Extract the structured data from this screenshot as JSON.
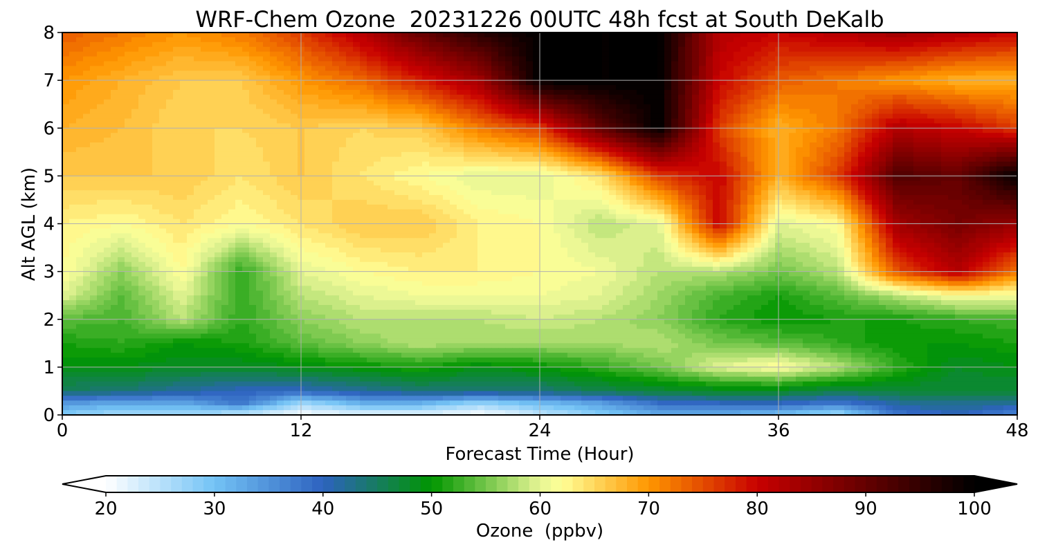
{
  "chart_data": {
    "type": "heatmap",
    "subtype": "filled-contour time-height cross section",
    "title": "WRF-Chem Ozone  20231226 00UTC 48h fcst at South DeKalb",
    "xlabel": "Forecast Time (Hour)",
    "ylabel": "Alt AGL (km)",
    "xlim": [
      0,
      48
    ],
    "ylim": [
      0,
      8
    ],
    "x_ticks": [
      "0",
      "12",
      "24",
      "36",
      "48"
    ],
    "y_ticks": [
      "0",
      "1",
      "2",
      "3",
      "4",
      "5",
      "6",
      "7",
      "8"
    ],
    "grid": true,
    "x": [
      0,
      3,
      6,
      9,
      12,
      15,
      18,
      21,
      24,
      27,
      30,
      33,
      36,
      39,
      42,
      45,
      48
    ],
    "y": [
      0,
      0.25,
      0.5,
      1,
      1.5,
      2,
      2.5,
      3,
      4,
      5,
      6,
      7,
      8
    ],
    "z_units": "ppbv",
    "z": [
      [
        28,
        26,
        26,
        24,
        20,
        22,
        22,
        20,
        24,
        28,
        32,
        32,
        30,
        26,
        38,
        40,
        36
      ],
      [
        35,
        33,
        33,
        38,
        27,
        32,
        32,
        28,
        31,
        34,
        39,
        40,
        40,
        38,
        42,
        43,
        42
      ],
      [
        45,
        44,
        42,
        40,
        40,
        42,
        44,
        44,
        44,
        46,
        47,
        48,
        48,
        46,
        47,
        47,
        47
      ],
      [
        49,
        49,
        48,
        48,
        49,
        50,
        51,
        49,
        50,
        52,
        55,
        60,
        62,
        58,
        52,
        48,
        49
      ],
      [
        51,
        52,
        50,
        51,
        54,
        56,
        58,
        57,
        57,
        57,
        58,
        55,
        54,
        52,
        50,
        50,
        51
      ],
      [
        54,
        53,
        58,
        52,
        56,
        58,
        58,
        58,
        59,
        58,
        56,
        52,
        50,
        51,
        51,
        52,
        53
      ],
      [
        60,
        54,
        60,
        52,
        58,
        60,
        61,
        61,
        61,
        60,
        57,
        53,
        51,
        54,
        58,
        62,
        61
      ],
      [
        62,
        56,
        62,
        52,
        60,
        62,
        63,
        63,
        62,
        61,
        58,
        58,
        55,
        58,
        75,
        82,
        72
      ],
      [
        63,
        62,
        64,
        62,
        64,
        66,
        66,
        63,
        62,
        58,
        60,
        80,
        60,
        62,
        84,
        88,
        85
      ],
      [
        66,
        66,
        66,
        64,
        66,
        64,
        62,
        60,
        60,
        64,
        76,
        80,
        68,
        76,
        92,
        90,
        100
      ],
      [
        68,
        67,
        65,
        65,
        66,
        65,
        66,
        72,
        76,
        90,
        100,
        76,
        68,
        72,
        82,
        80,
        76
      ],
      [
        70,
        68,
        66,
        66,
        70,
        73,
        78,
        84,
        100,
        100,
        100,
        80,
        74,
        72,
        70,
        68,
        68
      ],
      [
        74,
        72,
        70,
        72,
        76,
        82,
        90,
        96,
        100,
        100,
        100,
        82,
        80,
        82,
        84,
        82,
        80
      ]
    ],
    "colorbar": {
      "label": "Ozone  (ppbv)",
      "min": 20,
      "max": 100,
      "step": 1,
      "extend": "both",
      "orientation": "horizontal",
      "tick_labels": [
        "20",
        "30",
        "40",
        "50",
        "60",
        "70",
        "80",
        "90",
        "100"
      ],
      "colormap_stops": [
        {
          "v": 20,
          "c": "#ffffff"
        },
        {
          "v": 30,
          "c": "#73c3f5"
        },
        {
          "v": 40,
          "c": "#2d62bf"
        },
        {
          "v": 50,
          "c": "#009600"
        },
        {
          "v": 60,
          "c": "#e6f594"
        },
        {
          "v": 62,
          "c": "#ffff96"
        },
        {
          "v": 70,
          "c": "#ff9600"
        },
        {
          "v": 80,
          "c": "#c80000"
        },
        {
          "v": 90,
          "c": "#640000"
        },
        {
          "v": 100,
          "c": "#000000"
        }
      ]
    }
  }
}
